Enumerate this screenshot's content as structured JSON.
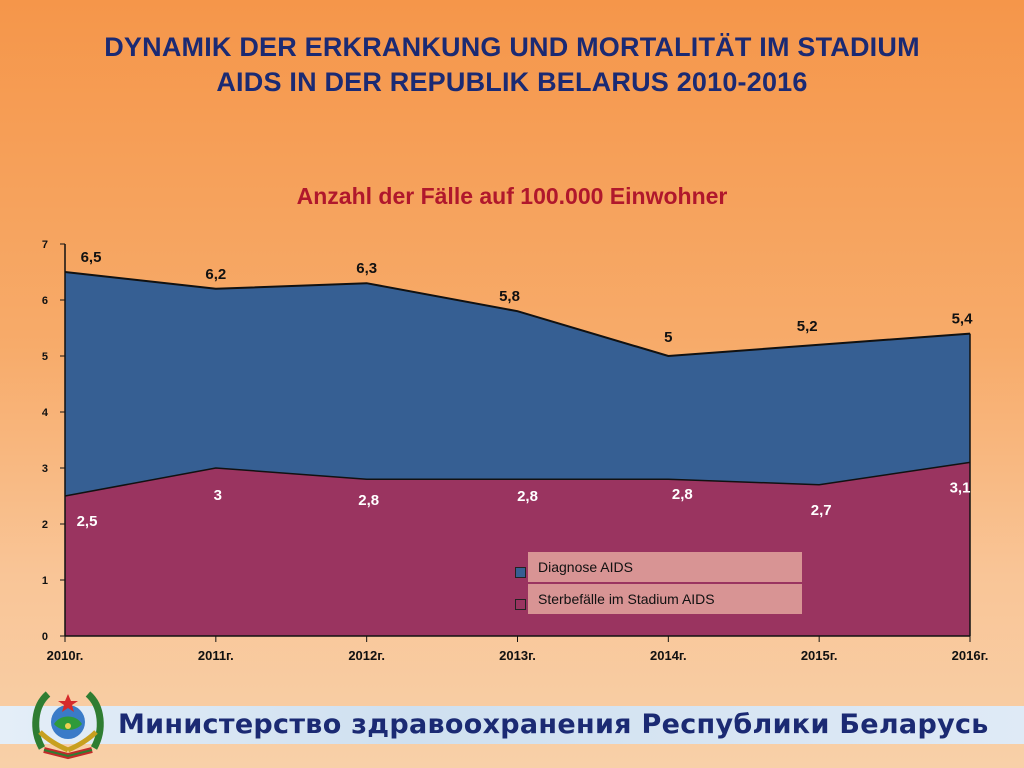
{
  "slide": {
    "title_line1": "DYNAMIK DER ERKRANKUNG UND MORTALITÄT IM STADIUM",
    "title_line2": "AIDS IN DER REPUBLIK BELARUS 2010-2016",
    "footer": "Министерство здравоохранения Республики Беларусь"
  },
  "chart_data": {
    "type": "area",
    "title": "Anzahl der Fälle auf 100.000 Einwohner",
    "categories": [
      "2010г.",
      "2011г.",
      "2012г.",
      "2013г.",
      "2014г.",
      "2015г.",
      "2016г."
    ],
    "series": [
      {
        "name": "Diagnose AIDS",
        "values": [
          6.5,
          6.2,
          6.3,
          5.8,
          5,
          5.2,
          5.4
        ],
        "labels": [
          "6,5",
          "6,2",
          "6,3",
          "5,8",
          "5",
          "5,2",
          "5,4"
        ],
        "color": "#365f93"
      },
      {
        "name": "Sterbefälle im Stadium AIDS",
        "values": [
          2.5,
          3,
          2.8,
          2.8,
          2.8,
          2.7,
          3.1
        ],
        "labels": [
          "2,5",
          "3",
          "2,8",
          "2,8",
          "2,8",
          "2,7",
          "3,1"
        ],
        "color": "#9a3460"
      }
    ],
    "ylim": [
      0,
      7
    ],
    "yticks": [
      "0",
      "1",
      "2",
      "3",
      "4",
      "5",
      "6",
      "7"
    ],
    "grid": false,
    "legend": "bottom-center"
  }
}
